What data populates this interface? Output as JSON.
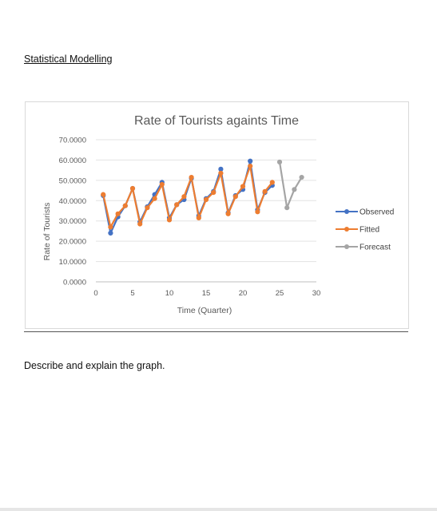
{
  "document": {
    "heading": "Statistical Modelling",
    "question": "Describe and explain the graph."
  },
  "chart_data": {
    "type": "line",
    "title": "Rate of Tourists againts Time",
    "xlabel": "Time (Quarter)",
    "ylabel": "Rate of Tourists",
    "xlim": [
      0,
      30
    ],
    "ylim": [
      0,
      70
    ],
    "xticks": [
      "0",
      "5",
      "10",
      "15",
      "20",
      "25",
      "30"
    ],
    "yticks": [
      "0.0000",
      "10.0000",
      "20.0000",
      "30.0000",
      "40.0000",
      "50.0000",
      "60.0000",
      "70.0000"
    ],
    "grid": true,
    "legend_position": "right",
    "series": [
      {
        "name": "Observed",
        "color": "#4472c4",
        "x": [
          1,
          2,
          3,
          4,
          5,
          6,
          7,
          8,
          9,
          10,
          11,
          12,
          13,
          14,
          15,
          16,
          17,
          18,
          19,
          20,
          21,
          22,
          23,
          24
        ],
        "values": [
          42.5,
          24,
          32,
          37.5,
          46,
          29.5,
          37,
          43,
          49,
          31.5,
          38,
          40.5,
          51,
          32.5,
          41,
          44.5,
          55.5,
          34,
          42.5,
          45.5,
          59.5,
          35.5,
          44,
          47.5
        ]
      },
      {
        "name": "Fitted",
        "color": "#ed7d31",
        "x": [
          1,
          2,
          3,
          4,
          5,
          6,
          7,
          8,
          9,
          10,
          11,
          12,
          13,
          14,
          15,
          16,
          17,
          18,
          19,
          20,
          21,
          22,
          23,
          24
        ],
        "values": [
          43,
          27,
          33.5,
          37.5,
          46,
          28.5,
          36.5,
          41,
          48,
          30.5,
          38,
          42,
          51.5,
          31.5,
          40.5,
          44,
          53.5,
          33.5,
          42,
          47,
          57,
          34.5,
          44.5,
          49
        ]
      },
      {
        "name": "Forecast",
        "color": "#a5a5a5",
        "x": [
          25,
          26,
          27,
          28
        ],
        "values": [
          59,
          36.5,
          45.5,
          51.5
        ]
      }
    ]
  }
}
